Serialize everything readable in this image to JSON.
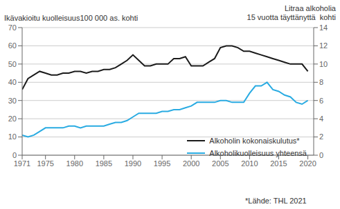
{
  "chart_data": {
    "type": "line",
    "ylabel": "Ikävakioitu kuolleisuus100 000 as. kohti",
    "y2label": "Litraa alkoholia\n15 vuotta täyttänyttä  kohti",
    "annotations": [
      "*Lähde: THL 2021"
    ],
    "x": [
      1971,
      1972,
      1973,
      1974,
      1975,
      1976,
      1977,
      1978,
      1979,
      1980,
      1981,
      1982,
      1983,
      1984,
      1985,
      1986,
      1987,
      1988,
      1989,
      1990,
      1991,
      1992,
      1993,
      1994,
      1995,
      1996,
      1997,
      1998,
      1999,
      2000,
      2001,
      2002,
      2003,
      2004,
      2005,
      2006,
      2007,
      2008,
      2009,
      2010,
      2011,
      2012,
      2013,
      2014,
      2015,
      2016,
      2017,
      2018,
      2019,
      2020
    ],
    "series": [
      {
        "name": "Alkoholin kokonaiskulutus*",
        "color": "#1a1a1a",
        "axis": "y2",
        "values": [
          7.2,
          8.4,
          8.8,
          9.2,
          9.0,
          8.8,
          8.8,
          9.0,
          9.0,
          9.2,
          9.2,
          9.0,
          9.2,
          9.2,
          9.4,
          9.4,
          9.6,
          10.0,
          10.4,
          11.0,
          10.4,
          9.8,
          9.8,
          10.0,
          10.0,
          10.0,
          10.6,
          10.6,
          10.8,
          9.8,
          9.8,
          9.8,
          10.2,
          10.6,
          11.8,
          12.0,
          12.0,
          11.8,
          11.4,
          11.4,
          11.2,
          11.0,
          10.8,
          10.6,
          10.4,
          10.2,
          10.0,
          10.0,
          10.0,
          9.2
        ]
      },
      {
        "name": "Alkoholikuolleisuus yhteensä",
        "color": "#29abe2",
        "values": [
          11,
          10,
          11,
          13,
          15,
          15,
          15,
          15,
          16,
          16,
          15,
          16,
          16,
          16,
          16,
          17,
          18,
          18,
          19,
          21,
          23,
          23,
          23,
          23,
          24,
          24,
          25,
          25,
          26,
          27,
          29,
          29,
          29,
          29,
          30,
          30,
          29,
          29,
          29,
          34,
          38,
          38,
          40,
          36,
          35,
          33,
          32,
          29,
          28,
          30
        ]
      }
    ],
    "xlim": [
      1971,
      2021
    ],
    "xticks": [
      1971,
      1975,
      1980,
      1985,
      1990,
      1995,
      2000,
      2005,
      2010,
      2015,
      2020
    ],
    "ylim": [
      0,
      70
    ],
    "yticks": [
      0,
      10,
      20,
      30,
      40,
      50,
      60,
      70
    ],
    "y2lim": [
      0,
      14
    ],
    "y2ticks": [
      0,
      2,
      4,
      6,
      8,
      10,
      12,
      14
    ],
    "grid": true,
    "legend": "lower right"
  }
}
